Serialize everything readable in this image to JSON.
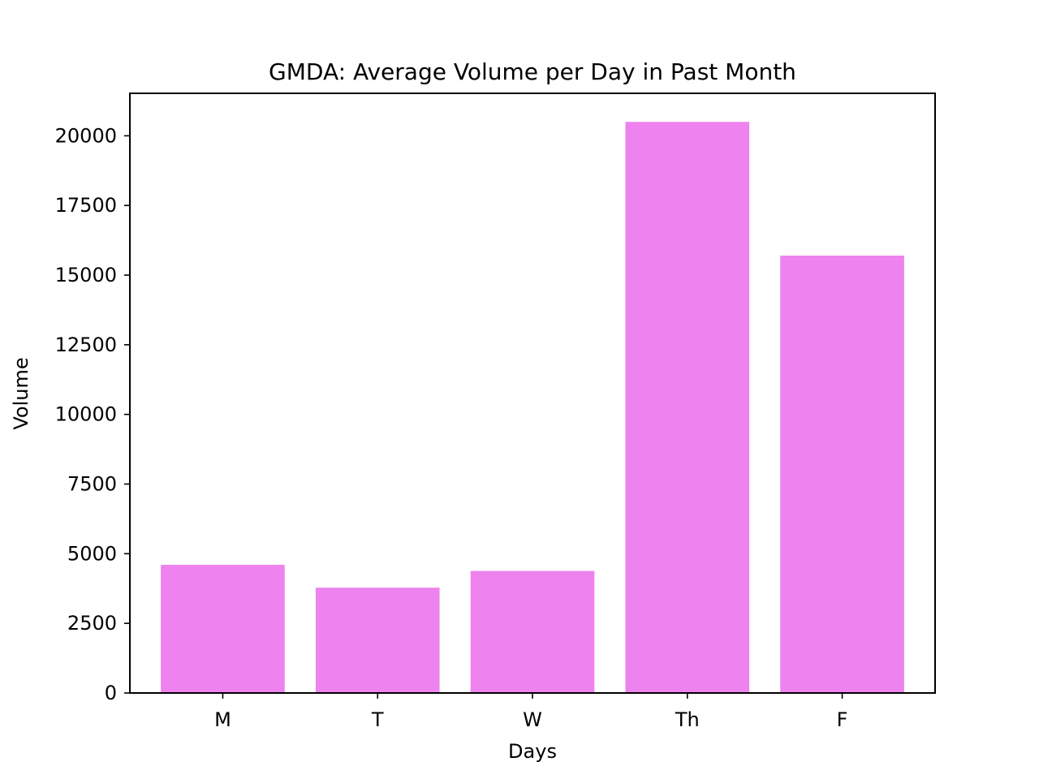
{
  "chart_data": {
    "type": "bar",
    "title": "GMDA: Average Volume per Day in Past Month",
    "xlabel": "Days",
    "ylabel": "Volume",
    "categories": [
      "M",
      "T",
      "W",
      "Th",
      "F"
    ],
    "values": [
      4600,
      3780,
      4380,
      20500,
      15700
    ],
    "ylim": [
      0,
      21525
    ],
    "yticks": [
      0,
      2500,
      5000,
      7500,
      10000,
      12500,
      15000,
      17500,
      20000
    ],
    "grid": false,
    "legend": "none",
    "bar_color": "#ee82ee"
  }
}
